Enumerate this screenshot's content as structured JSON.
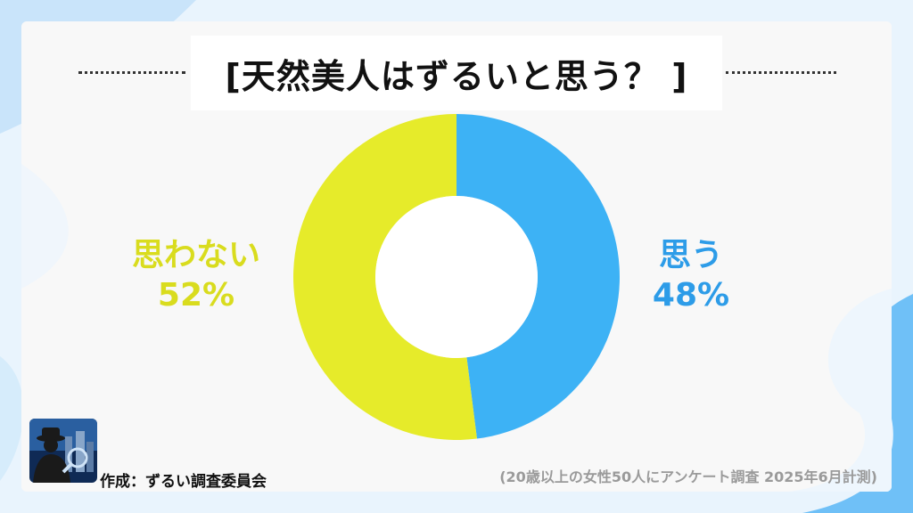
{
  "title": "[天然美人はずるいと思う？ ]",
  "chart_data": {
    "type": "pie",
    "donut": true,
    "categories": [
      "思う",
      "思わない"
    ],
    "values": [
      48,
      52
    ],
    "labels": [
      "48%",
      "52%"
    ],
    "colors": [
      "#3db2f5",
      "#e6eb2a"
    ]
  },
  "credit": "作成：ずるい調査委員会",
  "note": "(20歳以上の女性50人にアンケート調査 2025年6月計測)"
}
